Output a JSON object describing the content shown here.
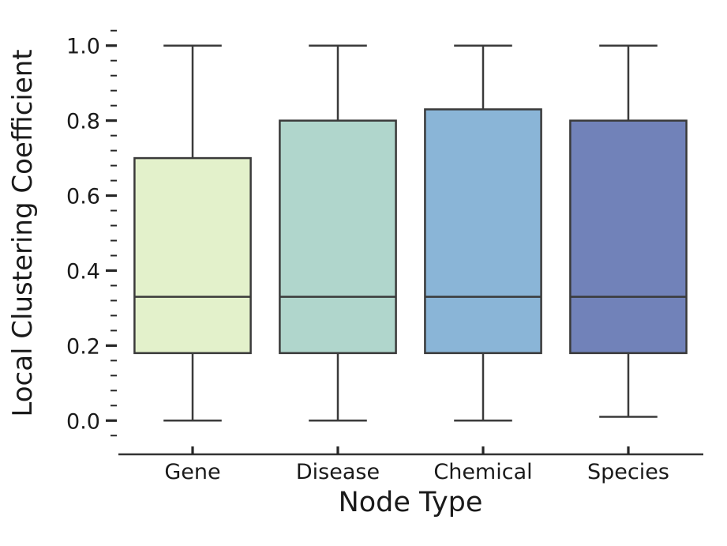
{
  "chart_data": {
    "type": "boxplot",
    "title": "",
    "xlabel": "Node Type",
    "ylabel": "Local Clustering Coefficient",
    "categories": [
      "Gene",
      "Disease",
      "Chemical",
      "Species"
    ],
    "series": [
      {
        "name": "Gene",
        "whisker_low": 0.0,
        "q1": 0.18,
        "median": 0.33,
        "q3": 0.7,
        "whisker_high": 1.0,
        "fill_color": "#e3f1cb"
      },
      {
        "name": "Disease",
        "whisker_low": 0.0,
        "q1": 0.18,
        "median": 0.33,
        "q3": 0.8,
        "whisker_high": 1.0,
        "fill_color": "#b0d6cc"
      },
      {
        "name": "Chemical",
        "whisker_low": 0.0,
        "q1": 0.18,
        "median": 0.33,
        "q3": 0.83,
        "whisker_high": 1.0,
        "fill_color": "#8ab5d7"
      },
      {
        "name": "Species",
        "whisker_low": 0.01,
        "q1": 0.18,
        "median": 0.33,
        "q3": 0.8,
        "whisker_high": 1.0,
        "fill_color": "#7182b9"
      }
    ],
    "y_ticks": [
      0.0,
      0.2,
      0.4,
      0.6,
      0.8,
      1.0
    ],
    "y_tick_labels": [
      "0.0",
      "0.2",
      "0.4",
      "0.6",
      "0.8",
      "1.0"
    ],
    "ylim": [
      -0.05,
      1.05
    ],
    "minor_tick_interval": 0.04,
    "grid": false,
    "legend": false,
    "box_width_fraction": 0.8,
    "edge_color": "#3a3a3a",
    "tick_color": "#262626",
    "spine_color": "#333333",
    "text_color": "#1a1a1a",
    "background_color": "#ffffff"
  }
}
